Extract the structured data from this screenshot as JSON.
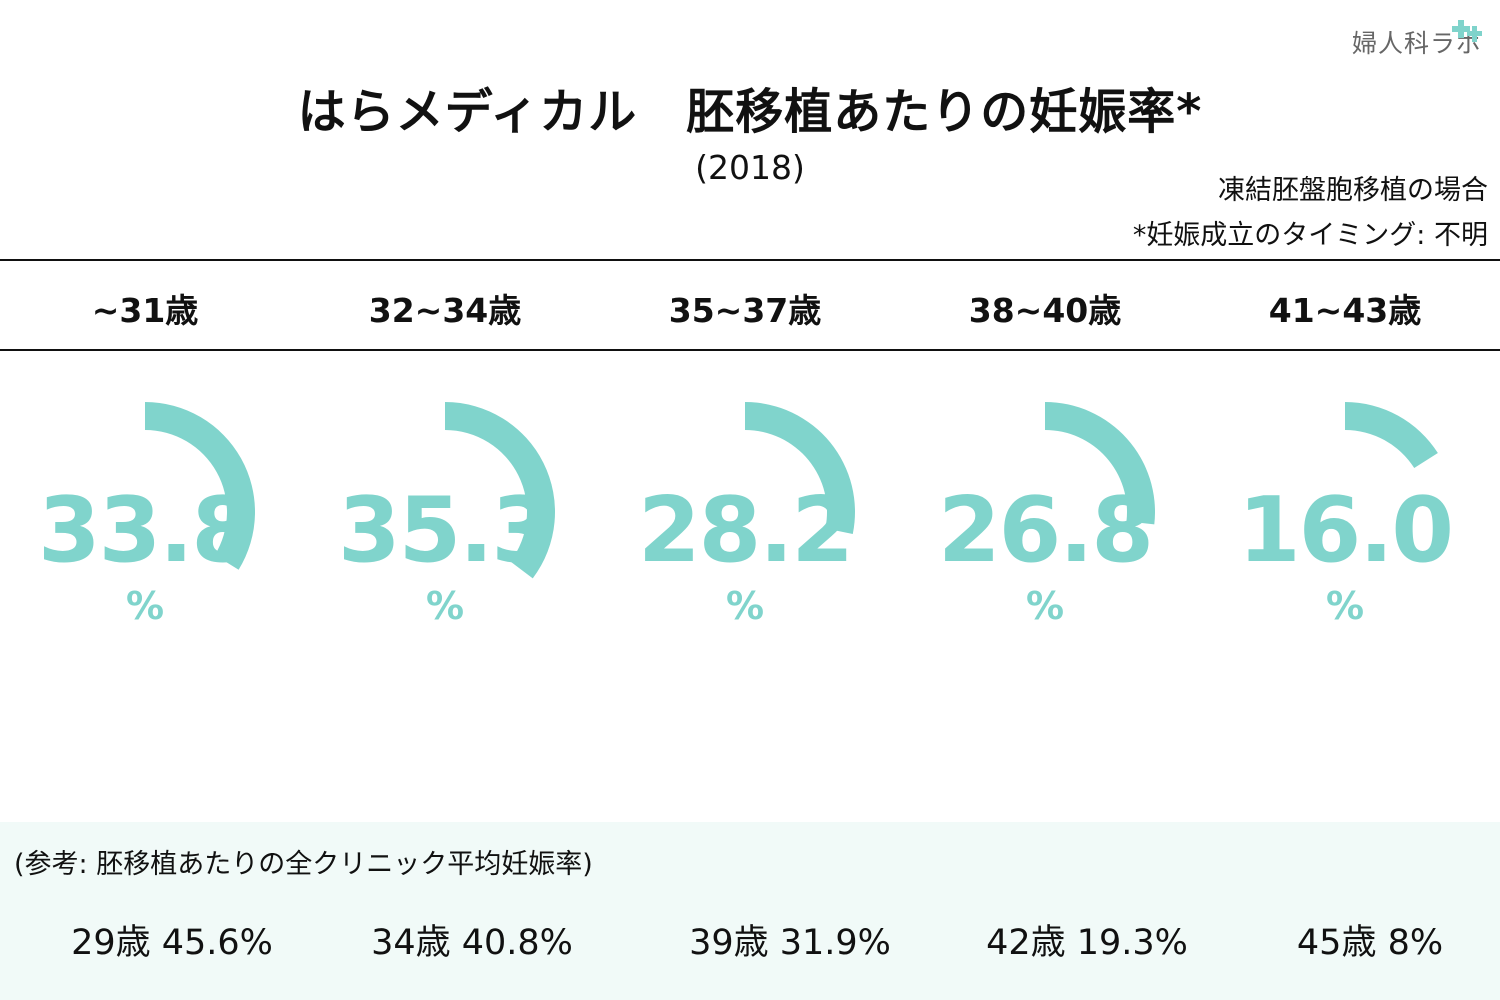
{
  "logo": {
    "text": "婦人科ラボ",
    "color": "#7fd3cb"
  },
  "title": "はらメディカル　胚移植あたりの妊娠率*",
  "subtitle": "(2018)",
  "notes": [
    "凍結胚盤胞移植の場合",
    "*妊娠成立のタイミング: 不明"
  ],
  "chart_data": {
    "type": "gauge",
    "title": "はらメディカル　胚移植あたりの妊娠率*",
    "subtitle": "(2018)",
    "unit": "%",
    "color": "#80d4cc",
    "categories": [
      "~31歳",
      "32~34歳",
      "35~37歳",
      "38~40歳",
      "41~43歳"
    ],
    "values": [
      33.8,
      35.3,
      28.2,
      26.8,
      16.0
    ],
    "value_labels": [
      "33.8",
      "35.3",
      "28.2",
      "26.8",
      "16.0"
    ],
    "ylim": [
      0,
      100
    ]
  },
  "reference": {
    "title": "(参考: 胚移植あたりの全クリニック平均妊娠率)",
    "items": [
      "29歳 45.6%",
      "34歳 40.8%",
      "39歳 31.9%",
      "42歳 19.3%",
      "45歳 8%"
    ]
  }
}
